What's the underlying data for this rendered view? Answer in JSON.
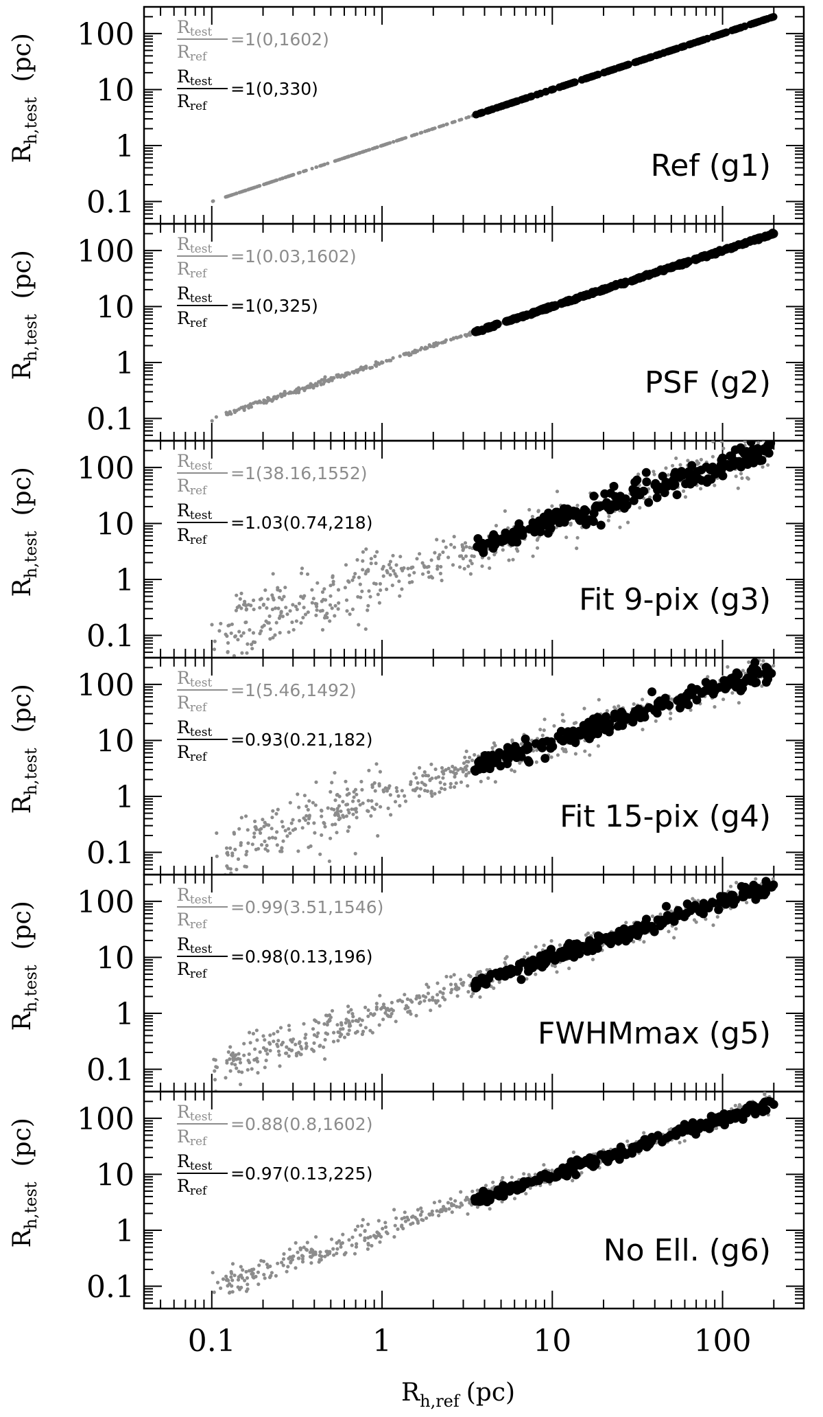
{
  "chart_data": {
    "type": "scatter",
    "xlabel": "R",
    "xlabel_sub": "h,ref",
    "xlabel_unit": "(pc)",
    "ylabel": "R",
    "ylabel_sub": "h,test",
    "ylabel_unit": "(pc)",
    "x_scale": "log",
    "y_scale": "log",
    "xlim": [
      0.04,
      300
    ],
    "ylim": [
      0.04,
      300
    ],
    "x_ticks": [
      0.1,
      1,
      10,
      100
    ],
    "x_tick_labels": [
      "0.1",
      "1",
      "10",
      "100"
    ],
    "y_ticks": [
      0.1,
      1,
      10,
      100
    ],
    "y_tick_labels": [
      "0.1",
      "1",
      "10",
      "100"
    ],
    "colors": {
      "all_clusters": "#8c8c8c",
      "large_clusters": "#000000"
    },
    "fraction_label": {
      "numerator": "R",
      "numerator_sub": "test",
      "denominator": "R",
      "denominator_sub": "ref"
    },
    "panels": [
      {
        "label": "Ref (g1)",
        "scatter": 0.0,
        "ann_gray": "=1(0,1602)",
        "ann_black": "=1(0,330)",
        "black_ratio": 1.0
      },
      {
        "label": "PSF (g2)",
        "scatter": 0.015,
        "ann_gray": "=1(0.03,1602)",
        "ann_black": "=1(0,325)",
        "black_ratio": 1.0
      },
      {
        "label": "Fit 9-pix (g3)",
        "scatter": 0.2,
        "ann_gray": "=1(38.16,1552)",
        "ann_black": "=1.03(0.74,218)",
        "black_ratio": 1.03
      },
      {
        "label": "Fit 15-pix (g4)",
        "scatter": 0.16,
        "ann_gray": "=1(5.46,1492)",
        "ann_black": "=0.93(0.21,182)",
        "black_ratio": 0.93
      },
      {
        "label": "FWHMmax (g5)",
        "scatter": 0.12,
        "ann_gray": "=0.99(3.51,1546)",
        "ann_black": "=0.98(0.13,196)",
        "black_ratio": 0.98
      },
      {
        "label": "No Ell. (g6)",
        "scatter": 0.09,
        "ann_gray": "=0.88(0.8,1602)",
        "ann_black": "=0.97(0.13,225)",
        "black_ratio": 0.97
      }
    ]
  }
}
